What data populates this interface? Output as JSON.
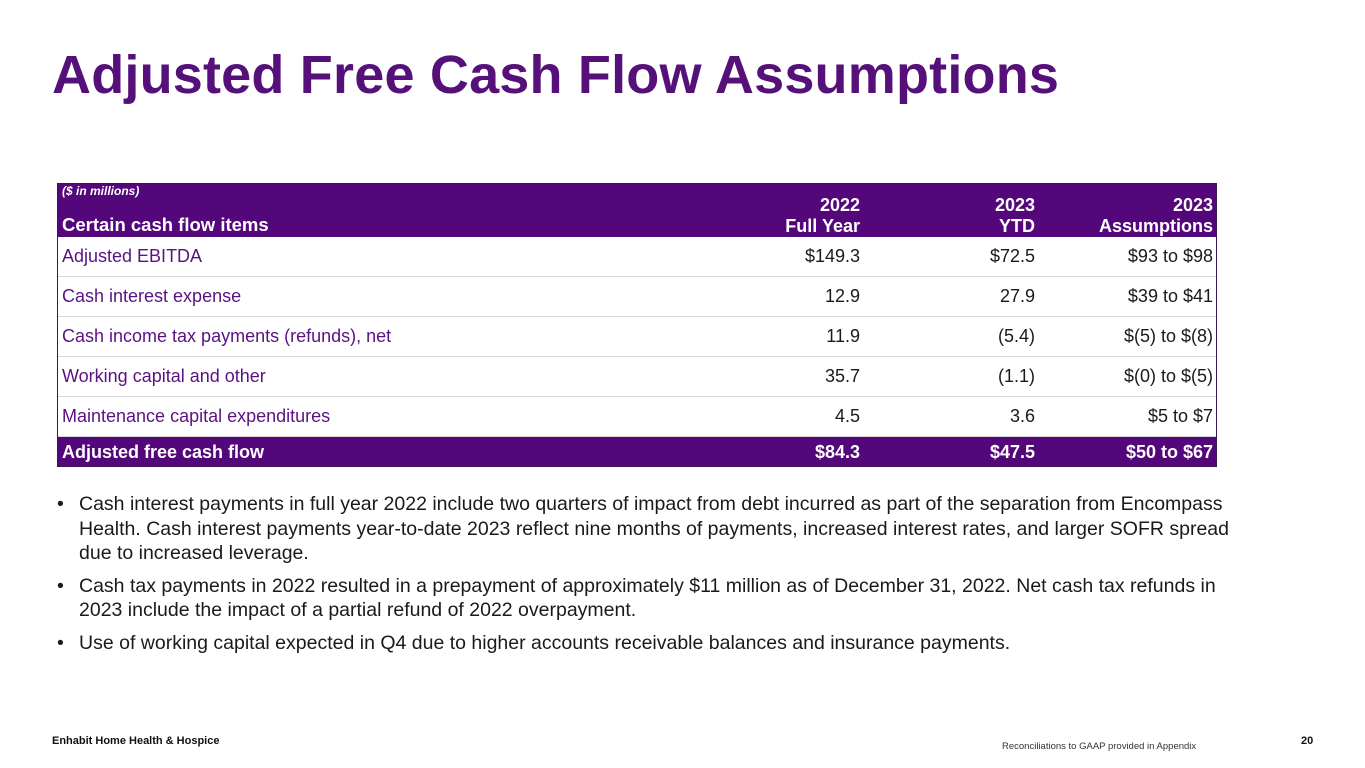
{
  "title": "Adjusted Free Cash Flow Assumptions",
  "table": {
    "units_note": "($ in millions)",
    "label_header": "Certain cash flow items",
    "col_2022": {
      "line1": "2022",
      "line2": "Full Year"
    },
    "col_ytd": {
      "line1": "2023",
      "line2": "YTD"
    },
    "col_assumptions": {
      "line1": "2023",
      "line2": "Assumptions"
    },
    "rows": [
      {
        "label": "Adjusted EBITDA",
        "fy2022": "$149.3",
        "ytd2023": "$72.5",
        "assumptions": "$93 to $98"
      },
      {
        "label": "Cash interest expense",
        "fy2022": "12.9",
        "ytd2023": "27.9",
        "assumptions": "$39 to $41"
      },
      {
        "label": "Cash income tax payments (refunds), net",
        "fy2022": "11.9",
        "ytd2023": "(5.4)",
        "assumptions": "$(5) to $(8)"
      },
      {
        "label": "Working capital and other",
        "fy2022": "35.7",
        "ytd2023": "(1.1)",
        "assumptions": "$(0) to $(5)"
      },
      {
        "label": "Maintenance capital expenditures",
        "fy2022": "4.5",
        "ytd2023": "3.6",
        "assumptions": "$5 to $7"
      }
    ],
    "total": {
      "label": "Adjusted free cash flow",
      "fy2022": "$84.3",
      "ytd2023": "$47.5",
      "assumptions": "$50 to $67"
    }
  },
  "bullet_marker": "•",
  "bullets": [
    "Cash interest payments in full year 2022 include two quarters of impact from debt incurred as part of the separation from Encompass Health. Cash interest payments year-to-date 2023 reflect nine months of payments, increased interest rates, and larger SOFR spread due to increased leverage.",
    "Cash tax payments in 2022 resulted in a prepayment of approximately $11 million as of December 31, 2022. Net cash tax refunds in 2023 include the impact of a partial refund of 2022 overpayment.",
    "Use of working capital expected in Q4 due to higher accounts receivable balances and insurance payments."
  ],
  "footer": {
    "company": "Enhabit Home Health & Hospice",
    "note": "Reconciliations to GAAP provided in Appendix",
    "page_number": "20"
  },
  "colors": {
    "brand_purple": "#55107a",
    "header_fill": "#54077a",
    "label_text": "#5a1283"
  }
}
